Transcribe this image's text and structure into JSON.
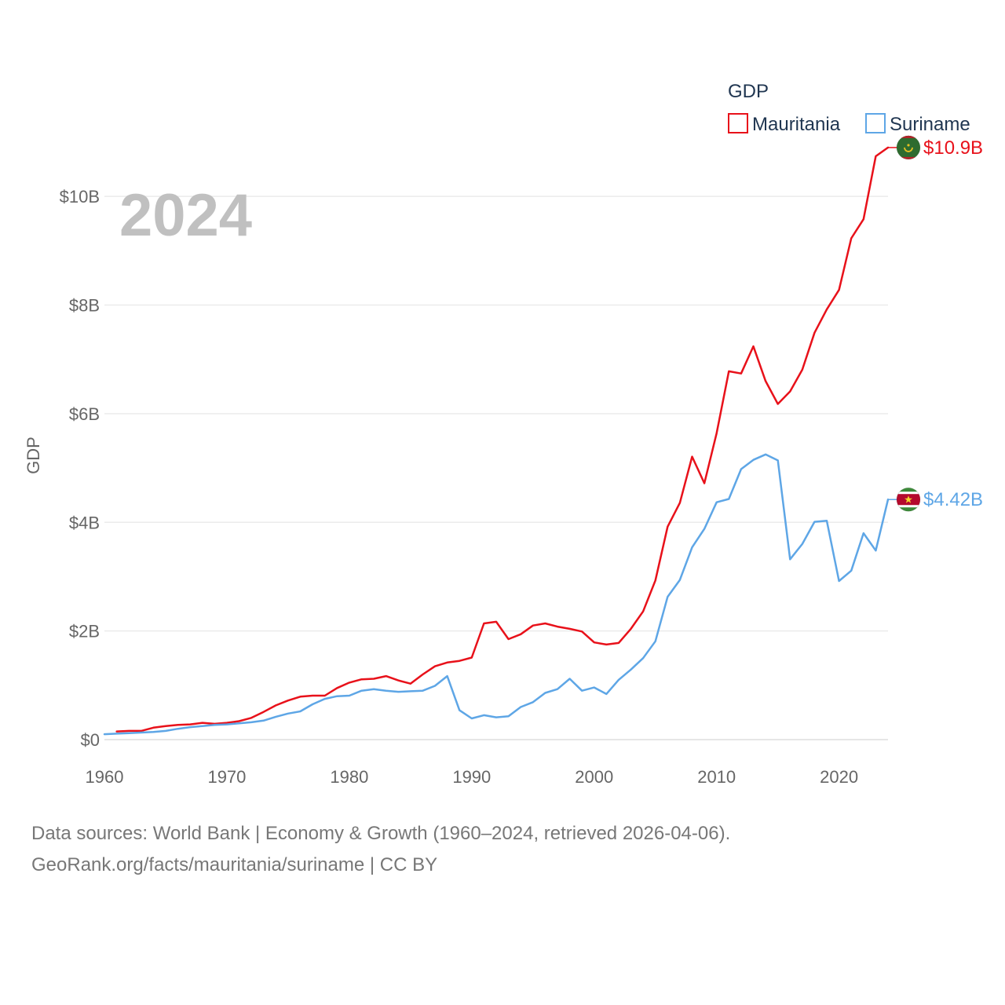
{
  "chart_data": {
    "type": "line",
    "title": "",
    "year_label": "2024",
    "ylabel": "GDP",
    "xlabel": "",
    "xlim": [
      1960,
      2024
    ],
    "ylim": [
      0,
      11
    ],
    "x_ticks": [
      1960,
      1970,
      1980,
      1990,
      2000,
      2010,
      2020
    ],
    "y_ticks": [
      {
        "value": 0,
        "label": "$0"
      },
      {
        "value": 2,
        "label": "$2B"
      },
      {
        "value": 4,
        "label": "$4B"
      },
      {
        "value": 6,
        "label": "$6B"
      },
      {
        "value": 8,
        "label": "$8B"
      },
      {
        "value": 10,
        "label": "$10B"
      }
    ],
    "legend": {
      "title": "GDP",
      "position": "top-right"
    },
    "series": [
      {
        "name": "Mauritania",
        "color": "#e8111a",
        "end_label": "$10.9B",
        "flag": "mauritania-flag",
        "x": [
          1961,
          1962,
          1963,
          1964,
          1965,
          1966,
          1967,
          1968,
          1969,
          1970,
          1971,
          1972,
          1973,
          1974,
          1975,
          1976,
          1977,
          1978,
          1979,
          1980,
          1981,
          1982,
          1983,
          1984,
          1985,
          1986,
          1987,
          1988,
          1989,
          1990,
          1991,
          1992,
          1993,
          1994,
          1995,
          1996,
          1997,
          1998,
          1999,
          2000,
          2001,
          2002,
          2003,
          2004,
          2005,
          2006,
          2007,
          2008,
          2009,
          2010,
          2011,
          2012,
          2013,
          2014,
          2015,
          2016,
          2017,
          2018,
          2019,
          2020,
          2021,
          2022,
          2023,
          2024
        ],
        "values": [
          0.15,
          0.16,
          0.16,
          0.22,
          0.25,
          0.27,
          0.28,
          0.31,
          0.29,
          0.31,
          0.34,
          0.4,
          0.51,
          0.63,
          0.72,
          0.79,
          0.81,
          0.81,
          0.95,
          1.05,
          1.11,
          1.12,
          1.17,
          1.09,
          1.03,
          1.2,
          1.35,
          1.42,
          1.45,
          1.51,
          2.14,
          2.17,
          1.85,
          1.94,
          2.1,
          2.14,
          2.08,
          2.04,
          1.99,
          1.79,
          1.75,
          1.78,
          2.04,
          2.36,
          2.93,
          3.92,
          4.36,
          5.21,
          4.72,
          5.64,
          6.78,
          6.74,
          7.24,
          6.6,
          6.18,
          6.41,
          6.81,
          7.49,
          7.92,
          8.28,
          9.23,
          9.58,
          10.74,
          10.9
        ]
      },
      {
        "name": "Suriname",
        "color": "#5ea6e6",
        "end_label": "$4.42B",
        "flag": "suriname-flag",
        "x": [
          1960,
          1961,
          1962,
          1963,
          1964,
          1965,
          1966,
          1967,
          1968,
          1969,
          1970,
          1971,
          1972,
          1973,
          1974,
          1975,
          1976,
          1977,
          1978,
          1979,
          1980,
          1981,
          1982,
          1983,
          1984,
          1985,
          1986,
          1987,
          1988,
          1989,
          1990,
          1991,
          1992,
          1993,
          1994,
          1995,
          1996,
          1997,
          1998,
          1999,
          2000,
          2001,
          2002,
          2003,
          2004,
          2005,
          2006,
          2007,
          2008,
          2009,
          2010,
          2011,
          2012,
          2013,
          2014,
          2015,
          2016,
          2017,
          2018,
          2019,
          2020,
          2021,
          2022,
          2023,
          2024
        ],
        "values": [
          0.1,
          0.11,
          0.12,
          0.13,
          0.14,
          0.16,
          0.2,
          0.23,
          0.25,
          0.27,
          0.28,
          0.3,
          0.32,
          0.35,
          0.42,
          0.48,
          0.52,
          0.65,
          0.75,
          0.8,
          0.81,
          0.9,
          0.93,
          0.9,
          0.88,
          0.89,
          0.9,
          0.99,
          1.17,
          0.54,
          0.39,
          0.45,
          0.41,
          0.43,
          0.6,
          0.69,
          0.86,
          0.93,
          1.12,
          0.9,
          0.96,
          0.84,
          1.1,
          1.29,
          1.5,
          1.81,
          2.63,
          2.94,
          3.54,
          3.88,
          4.37,
          4.43,
          4.98,
          5.15,
          5.25,
          5.14,
          3.32,
          3.6,
          4.01,
          4.03,
          2.92,
          3.11,
          3.8,
          3.48,
          4.42
        ]
      }
    ]
  },
  "footer": {
    "line1": "Data sources: World Bank | Economy & Growth (1960–2024, retrieved 2026-04-06).",
    "line2": "GeoRank.org/facts/mauritania/suriname | CC BY"
  }
}
